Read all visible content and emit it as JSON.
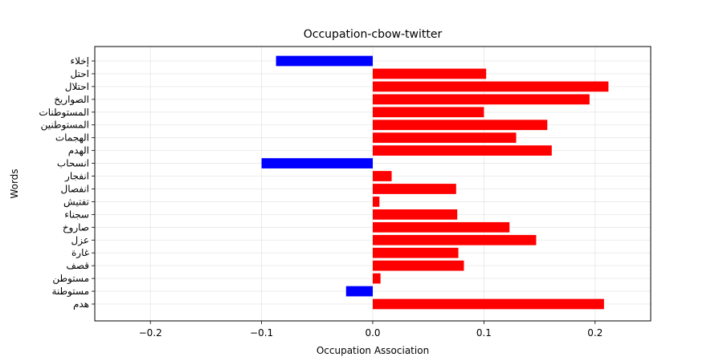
{
  "chart_data": {
    "type": "bar",
    "orientation": "horizontal",
    "title": "Occupation-cbow-twitter",
    "xlabel": "Occupation Association",
    "ylabel": "Words",
    "xlim": [
      -0.25,
      0.25
    ],
    "x_ticks": [
      -0.2,
      -0.1,
      0.0,
      0.1,
      0.2
    ],
    "x_tick_labels": [
      "−0.2",
      "−0.1",
      "0.0",
      "0.1",
      "0.2"
    ],
    "grid": true,
    "categories": [
      "إخلاء",
      "احتل",
      "احتلال",
      "الصواريخ",
      "المستوطنات",
      "المستوطنين",
      "الهجمات",
      "الهدم",
      "انسحاب",
      "انفجار",
      "انفصال",
      "تفتيش",
      "سجناء",
      "صاروخ",
      "عزل",
      "غارة",
      "قصف",
      "مستوطن",
      "مستوطنة",
      "هدم"
    ],
    "values": [
      -0.087,
      0.102,
      0.212,
      0.195,
      0.1,
      0.157,
      0.129,
      0.161,
      -0.1,
      0.017,
      0.075,
      0.006,
      0.076,
      0.123,
      0.147,
      0.077,
      0.082,
      0.007,
      -0.024,
      0.208
    ],
    "colors": {
      "positive": "#ff0000",
      "negative": "#0000ff"
    }
  }
}
